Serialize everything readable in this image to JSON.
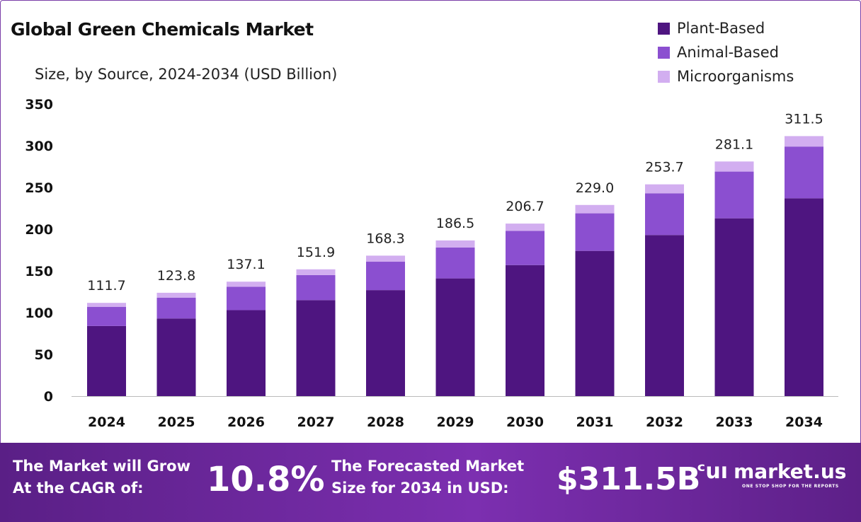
{
  "title": "Global Green Chemicals Market",
  "subtitle": "Size, by Source, 2024-2034 (USD Billion)",
  "colors": {
    "plant": "#4e1580",
    "animal": "#8b4fd0",
    "micro": "#d2aef0",
    "axis": "#bbbbbb"
  },
  "legend": [
    {
      "label": "Plant-Based",
      "color": "#4e1580"
    },
    {
      "label": "Animal-Based",
      "color": "#8b4fd0"
    },
    {
      "label": "Microorganisms",
      "color": "#d2aef0"
    }
  ],
  "chart_data": {
    "type": "bar",
    "stacked": true,
    "categories": [
      "2024",
      "2025",
      "2026",
      "2027",
      "2028",
      "2029",
      "2030",
      "2031",
      "2032",
      "2033",
      "2034"
    ],
    "series": [
      {
        "name": "Plant-Based",
        "values": [
          84,
          93,
          103,
          115,
          127,
          141,
          157,
          174,
          193,
          213,
          237
        ]
      },
      {
        "name": "Animal-Based",
        "values": [
          23,
          25,
          28,
          30,
          34,
          37,
          41,
          45,
          50,
          56,
          62
        ]
      },
      {
        "name": "Microorganisms",
        "values": [
          4.7,
          5.8,
          6.1,
          6.9,
          7.3,
          8.5,
          8.7,
          10,
          10.7,
          12.1,
          12.5
        ]
      }
    ],
    "totals": [
      "111.7",
      "123.8",
      "137.1",
      "151.9",
      "168.3",
      "186.5",
      "206.7",
      "229.0",
      "253.7",
      "281.1",
      "311.5"
    ],
    "yticks": [
      "0",
      "50",
      "100",
      "150",
      "200",
      "250",
      "300",
      "350"
    ],
    "ylim": [
      0,
      350
    ],
    "grid": false,
    "legend_position": "top-right"
  },
  "footer": {
    "cagr_label_line1": "The Market will Grow",
    "cagr_label_line2": "At the CAGR of:",
    "cagr_value": "10.8%",
    "forecast_label_line1": "The Forecasted Market",
    "forecast_label_line2": "Size for 2034 in USD:",
    "forecast_value": "$311.5B",
    "brand_icon": "ᶜuı",
    "brand_name": "market.us",
    "brand_tagline": "ONE STOP SHOP FOR THE REPORTS"
  }
}
